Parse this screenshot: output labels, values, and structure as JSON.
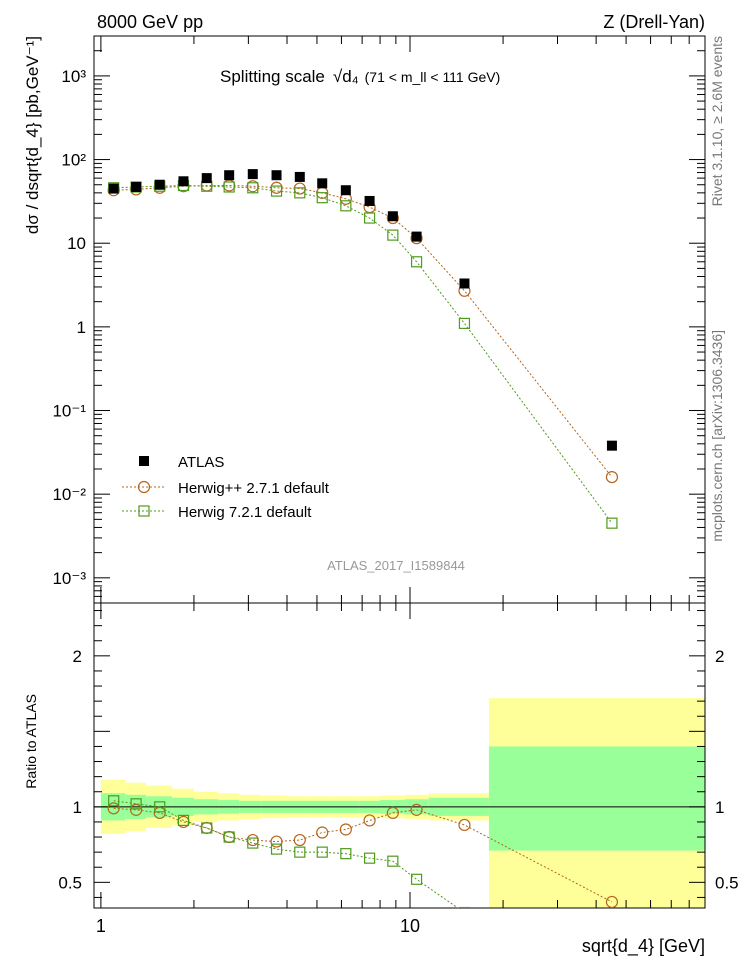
{
  "header": {
    "left": "8000 GeV pp",
    "right": "Z (Drell-Yan)"
  },
  "side": {
    "rivet": "Rivet 3.1.10, ≥ 2.6M events",
    "mcplots": "mcplots.cern.ch [arXiv:1306.3436]"
  },
  "chart_data": [
    {
      "type": "scatter",
      "panel": "main",
      "title": "Splitting scale",
      "title_math": "√d₄",
      "title_range": "(71 < m_ll < 111 GeV)",
      "watermark": "ATLAS_2017_I1589844",
      "ylabel": "dσ / dsqrt{d_4} [pb,GeV⁻¹]",
      "xscale": "log",
      "yscale": "log",
      "xlim": [
        0.95,
        90
      ],
      "ylim": [
        0.0005,
        3000
      ],
      "y_tick_labels": [
        "10⁻³",
        "10⁻²",
        "10⁻¹",
        "1",
        "10",
        "10²",
        "10³"
      ],
      "legend_position": "bottom-left",
      "series": [
        {
          "name": "ATLAS",
          "color": "#000000",
          "marker": "filled-square",
          "x": [
            1.1,
            1.3,
            1.55,
            1.85,
            2.2,
            2.6,
            3.1,
            3.7,
            4.4,
            5.2,
            6.2,
            7.4,
            8.8,
            10.5,
            15,
            45
          ],
          "y": [
            45,
            47,
            50,
            55,
            60,
            65,
            67,
            65,
            62,
            52,
            43,
            32,
            21,
            12,
            3.3,
            0.038
          ]
        },
        {
          "name": "Herwig++ 2.7.1 default",
          "color": "#b5651d",
          "marker": "open-circle",
          "x": [
            1.1,
            1.3,
            1.55,
            1.85,
            2.2,
            2.6,
            3.1,
            3.7,
            4.4,
            5.2,
            6.2,
            7.4,
            8.8,
            10.5,
            15,
            45
          ],
          "y": [
            43,
            44,
            46,
            48,
            49,
            49,
            48,
            46,
            45,
            40,
            34,
            27,
            20,
            11.5,
            2.7,
            0.016
          ]
        },
        {
          "name": "Herwig 7.2.1 default",
          "color": "#4f9b1c",
          "marker": "open-square",
          "x": [
            1.1,
            1.3,
            1.55,
            1.85,
            2.2,
            2.6,
            3.1,
            3.7,
            4.4,
            5.2,
            6.2,
            7.4,
            8.8,
            10.5,
            15,
            45
          ],
          "y": [
            46,
            47,
            48,
            49,
            48,
            47,
            46,
            42,
            40,
            35,
            28,
            20,
            12.5,
            6,
            1.1,
            0.0045
          ]
        }
      ]
    },
    {
      "type": "line",
      "panel": "ratio",
      "xlabel": "sqrt{d_4} [GeV]",
      "ylabel": "Ratio to ATLAS",
      "xscale": "log",
      "xlim": [
        0.95,
        90
      ],
      "ylim": [
        0.33,
        2.35
      ],
      "y_ticks": [
        0.5,
        1,
        2
      ],
      "x_ticks": [
        1,
        10
      ],
      "bands": {
        "edges": [
          1.0,
          1.2,
          1.4,
          1.7,
          2.0,
          2.4,
          2.8,
          3.3,
          4.0,
          4.8,
          5.7,
          6.8,
          8.0,
          9.6,
          11.5,
          18.0,
          90.0
        ],
        "inner_color": "#99ff99",
        "outer_color": "#ffff99",
        "inner_lo": [
          0.91,
          0.92,
          0.93,
          0.94,
          0.95,
          0.955,
          0.96,
          0.96,
          0.96,
          0.96,
          0.96,
          0.96,
          0.955,
          0.95,
          0.94,
          0.71
        ],
        "inner_hi": [
          1.09,
          1.08,
          1.07,
          1.06,
          1.05,
          1.045,
          1.04,
          1.04,
          1.04,
          1.04,
          1.04,
          1.04,
          1.045,
          1.05,
          1.06,
          1.4
        ],
        "outer_lo": [
          0.82,
          0.84,
          0.86,
          0.88,
          0.9,
          0.91,
          0.92,
          0.925,
          0.93,
          0.93,
          0.93,
          0.93,
          0.925,
          0.92,
          0.91,
          0.0
        ],
        "outer_hi": [
          1.18,
          1.16,
          1.14,
          1.12,
          1.1,
          1.09,
          1.08,
          1.075,
          1.07,
          1.07,
          1.07,
          1.07,
          1.075,
          1.08,
          1.09,
          1.72
        ]
      },
      "series": [
        {
          "name": "Herwig++ 2.7.1 default",
          "color": "#b5651d",
          "marker": "open-circle",
          "x": [
            1.1,
            1.3,
            1.55,
            1.85,
            2.2,
            2.6,
            3.1,
            3.7,
            4.4,
            5.2,
            6.2,
            7.4,
            8.8,
            10.5,
            15,
            45
          ],
          "y": [
            0.99,
            0.98,
            0.96,
            0.9,
            0.86,
            0.8,
            0.78,
            0.77,
            0.78,
            0.83,
            0.85,
            0.91,
            0.96,
            0.98,
            0.88,
            0.37
          ]
        },
        {
          "name": "Herwig 7.2.1 default",
          "color": "#4f9b1c",
          "marker": "open-square",
          "x": [
            1.1,
            1.3,
            1.55,
            1.85,
            2.2,
            2.6,
            3.1,
            3.7,
            4.4,
            5.2,
            6.2,
            7.4,
            8.8,
            10.5,
            15
          ],
          "y": [
            1.04,
            1.02,
            1.0,
            0.91,
            0.86,
            0.8,
            0.76,
            0.72,
            0.7,
            0.7,
            0.69,
            0.66,
            0.64,
            0.52,
            0.3
          ]
        }
      ]
    }
  ]
}
